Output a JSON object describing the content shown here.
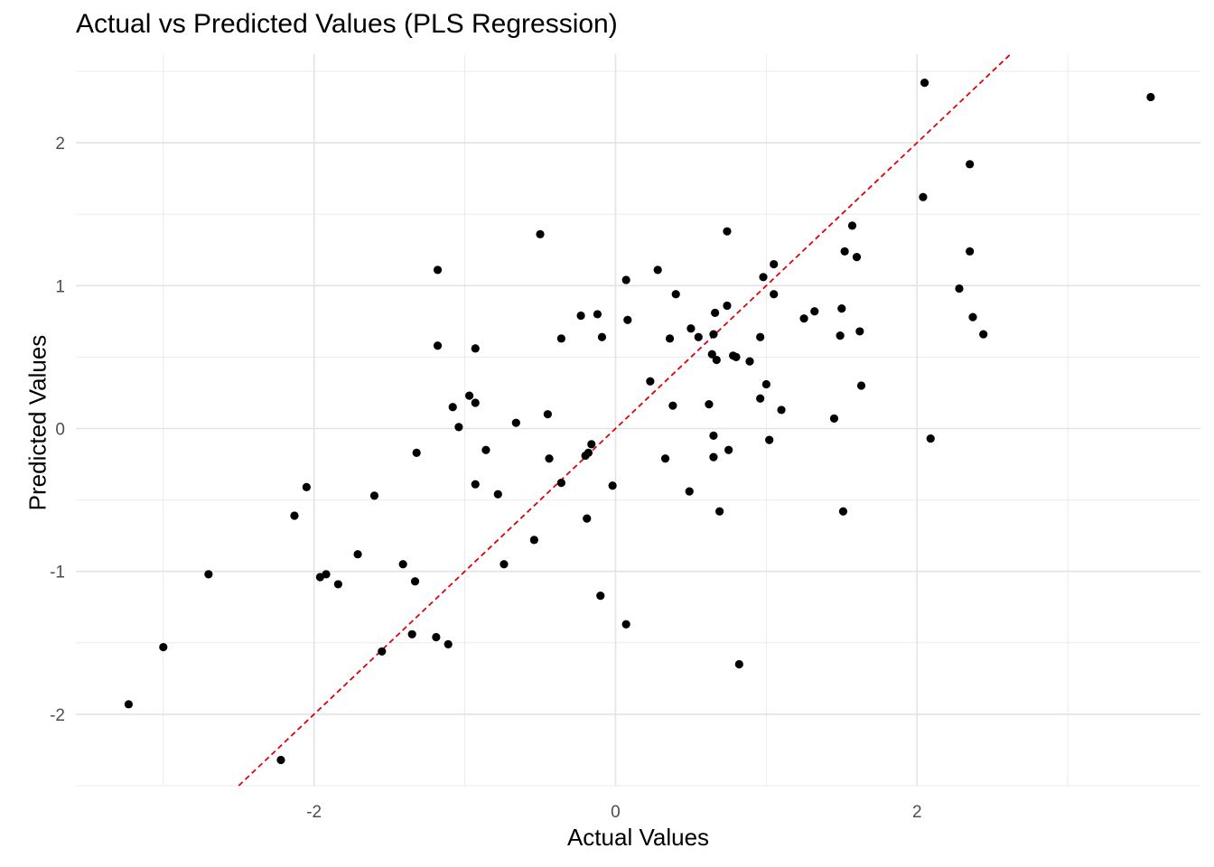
{
  "chart_data": {
    "type": "scatter",
    "title": "Actual vs Predicted Values (PLS Regression)",
    "xlabel": "Actual Values",
    "ylabel": "Predicted Values",
    "xlim": [
      -3.58,
      3.88
    ],
    "ylim": [
      -2.5,
      2.62
    ],
    "x_ticks": [
      -2,
      0,
      2
    ],
    "y_ticks": [
      -2,
      -1,
      0,
      1,
      2
    ],
    "x_tick_labels": [
      "-2",
      "0",
      "2"
    ],
    "y_tick_labels": [
      "-2",
      "-1",
      "0",
      "1",
      "2"
    ],
    "grid": true,
    "reference_line": {
      "slope": 1,
      "intercept": 0,
      "style": "dashed",
      "color": "#e0000a"
    },
    "point_color": "#000000",
    "points": [
      [
        -3.23,
        -1.93
      ],
      [
        -3.0,
        -1.53
      ],
      [
        -2.7,
        -1.02
      ],
      [
        -2.22,
        -2.32
      ],
      [
        -2.13,
        -0.61
      ],
      [
        -2.05,
        -0.41
      ],
      [
        -1.96,
        -1.04
      ],
      [
        -1.92,
        -1.02
      ],
      [
        -1.84,
        -1.09
      ],
      [
        -1.71,
        -0.88
      ],
      [
        -1.6,
        -0.47
      ],
      [
        -1.55,
        -1.56
      ],
      [
        -1.41,
        -0.95
      ],
      [
        -1.35,
        -1.44
      ],
      [
        -1.33,
        -1.07
      ],
      [
        -1.32,
        -0.17
      ],
      [
        -1.19,
        -1.46
      ],
      [
        -1.18,
        0.58
      ],
      [
        -1.18,
        1.11
      ],
      [
        -1.11,
        -1.51
      ],
      [
        -1.08,
        0.15
      ],
      [
        -1.04,
        0.01
      ],
      [
        -0.97,
        0.23
      ],
      [
        -0.93,
        0.18
      ],
      [
        -0.93,
        -0.39
      ],
      [
        -0.93,
        0.56
      ],
      [
        -0.86,
        -0.15
      ],
      [
        -0.78,
        -0.46
      ],
      [
        -0.74,
        -0.95
      ],
      [
        -0.66,
        0.04
      ],
      [
        -0.54,
        -0.78
      ],
      [
        -0.5,
        1.36
      ],
      [
        -0.45,
        0.1
      ],
      [
        -0.44,
        -0.21
      ],
      [
        -0.36,
        -0.38
      ],
      [
        -0.36,
        0.63
      ],
      [
        -0.23,
        0.79
      ],
      [
        -0.2,
        -0.19
      ],
      [
        -0.19,
        -0.63
      ],
      [
        -0.18,
        -0.17
      ],
      [
        -0.16,
        -0.11
      ],
      [
        -0.12,
        0.8
      ],
      [
        -0.1,
        -1.17
      ],
      [
        -0.09,
        0.64
      ],
      [
        -0.02,
        -0.4
      ],
      [
        0.07,
        1.04
      ],
      [
        0.07,
        -1.37
      ],
      [
        0.08,
        0.76
      ],
      [
        0.23,
        0.33
      ],
      [
        0.28,
        1.11
      ],
      [
        0.33,
        -0.21
      ],
      [
        0.36,
        0.63
      ],
      [
        0.38,
        0.16
      ],
      [
        0.4,
        0.94
      ],
      [
        0.49,
        -0.44
      ],
      [
        0.5,
        0.7
      ],
      [
        0.55,
        0.64
      ],
      [
        0.62,
        0.17
      ],
      [
        0.64,
        0.52
      ],
      [
        0.65,
        0.66
      ],
      [
        0.65,
        -0.2
      ],
      [
        0.65,
        -0.05
      ],
      [
        0.66,
        0.81
      ],
      [
        0.67,
        0.48
      ],
      [
        0.69,
        -0.58
      ],
      [
        0.74,
        0.86
      ],
      [
        0.74,
        1.38
      ],
      [
        0.75,
        -0.15
      ],
      [
        0.78,
        0.51
      ],
      [
        0.8,
        0.5
      ],
      [
        0.82,
        -1.65
      ],
      [
        0.89,
        0.47
      ],
      [
        0.96,
        0.21
      ],
      [
        0.96,
        0.64
      ],
      [
        0.98,
        1.06
      ],
      [
        1.0,
        0.31
      ],
      [
        1.02,
        -0.08
      ],
      [
        1.05,
        1.15
      ],
      [
        1.05,
        0.94
      ],
      [
        1.1,
        0.13
      ],
      [
        1.25,
        0.77
      ],
      [
        1.32,
        0.82
      ],
      [
        1.45,
        0.07
      ],
      [
        1.49,
        0.65
      ],
      [
        1.5,
        0.84
      ],
      [
        1.51,
        -0.58
      ],
      [
        1.52,
        1.24
      ],
      [
        1.57,
        1.42
      ],
      [
        1.6,
        1.2
      ],
      [
        1.62,
        0.68
      ],
      [
        1.63,
        0.3
      ],
      [
        2.04,
        1.62
      ],
      [
        2.05,
        2.42
      ],
      [
        2.09,
        -0.07
      ],
      [
        2.28,
        0.98
      ],
      [
        2.35,
        1.85
      ],
      [
        2.35,
        1.24
      ],
      [
        2.37,
        0.78
      ],
      [
        2.44,
        0.66
      ],
      [
        3.55,
        2.32
      ]
    ]
  }
}
